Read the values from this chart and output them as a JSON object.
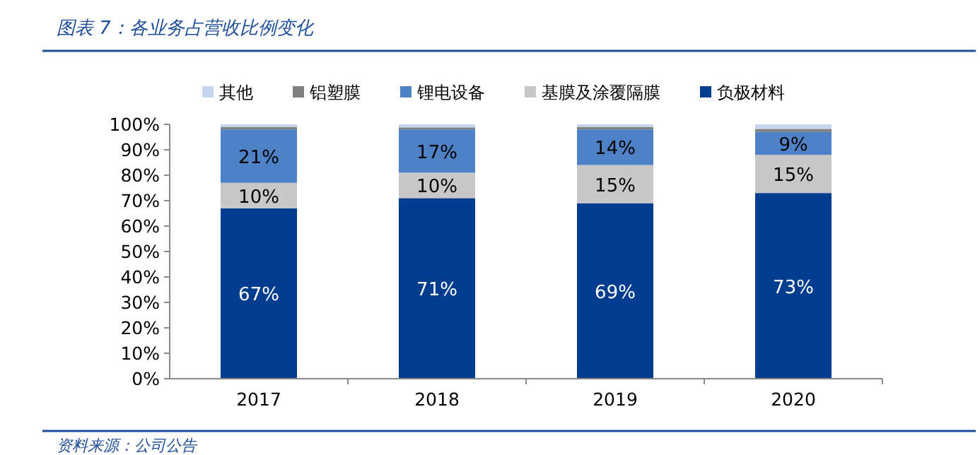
{
  "chart_data": {
    "type": "bar",
    "stacked": true,
    "title": "图表 7：各业务占营收比例变化",
    "categories": [
      "2017",
      "2018",
      "2019",
      "2020"
    ],
    "series": [
      {
        "name": "负极材料",
        "color": "#003d8f",
        "values": [
          67,
          71,
          69,
          73
        ],
        "value_labels": [
          "67%",
          "71%",
          "69%",
          "73%"
        ]
      },
      {
        "name": "基膜及涂覆隔膜",
        "color": "#c8c8c8",
        "values": [
          10,
          10,
          15,
          15
        ],
        "value_labels": [
          "10%",
          "10%",
          "15%",
          "15%"
        ]
      },
      {
        "name": "锂电设备",
        "color": "#4f81c7",
        "values": [
          21,
          17,
          14,
          9
        ],
        "value_labels": [
          "21%",
          "17%",
          "14%",
          "9%"
        ]
      },
      {
        "name": "铝塑膜",
        "color": "#808080",
        "values": [
          1.0,
          0.8,
          1.0,
          1.2
        ]
      },
      {
        "name": "其他",
        "color": "#c5d5ee",
        "values": [
          1.0,
          1.2,
          1.0,
          1.8
        ]
      }
    ],
    "ylim": [
      0,
      100
    ],
    "yticks": [
      {
        "value": 0,
        "label": "0%"
      },
      {
        "value": 10,
        "label": "10%"
      },
      {
        "value": 20,
        "label": "20%"
      },
      {
        "value": 30,
        "label": "30%"
      },
      {
        "value": 40,
        "label": "40%"
      },
      {
        "value": 50,
        "label": "50%"
      },
      {
        "value": 60,
        "label": "60%"
      },
      {
        "value": 70,
        "label": "70%"
      },
      {
        "value": 80,
        "label": "80%"
      },
      {
        "value": 90,
        "label": "90%"
      },
      {
        "value": 100,
        "label": "100%"
      }
    ],
    "grid": false,
    "legend": "top",
    "annotations": [
      "资料来源：公司公告"
    ]
  }
}
